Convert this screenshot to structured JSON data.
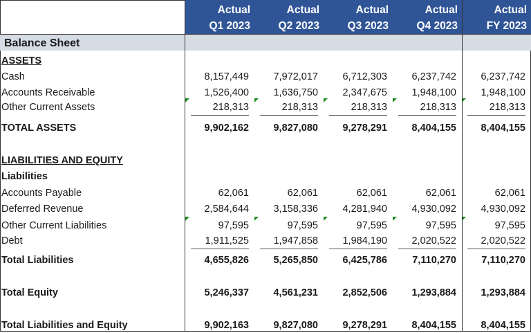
{
  "columns": [
    {
      "line1": "Actual",
      "line2": "Q1 2023"
    },
    {
      "line1": "Actual",
      "line2": "Q2 2023"
    },
    {
      "line1": "Actual",
      "line2": "Q3 2023"
    },
    {
      "line1": "Actual",
      "line2": "Q4 2023"
    },
    {
      "line1": "Actual",
      "line2": "FY 2023"
    }
  ],
  "section_title": "Balance Sheet",
  "rows": [
    {
      "label": "ASSETS",
      "style": "heading-underline",
      "values": []
    },
    {
      "label": "Cash",
      "values": [
        "8,157,449",
        "7,972,017",
        "6,712,303",
        "6,237,742",
        "6,237,742"
      ]
    },
    {
      "label": "Accounts Receivable",
      "values": [
        "1,526,400",
        "1,636,750",
        "2,347,675",
        "1,948,100",
        "1,948,100"
      ]
    },
    {
      "label": "Other Current Assets",
      "values": [
        "218,313",
        "218,313",
        "218,313",
        "218,313",
        "218,313"
      ],
      "underline": true,
      "flag": true
    },
    {
      "label": "TOTAL ASSETS",
      "style": "bold",
      "values": [
        "9,902,162",
        "9,827,080",
        "9,278,291",
        "8,404,155",
        "8,404,155"
      ]
    },
    {
      "label": "LIABILITIES AND EQUITY",
      "style": "heading-underline",
      "values": []
    },
    {
      "label": "Liabilities",
      "style": "bold",
      "values": []
    },
    {
      "label": "Accounts Payable",
      "values": [
        "62,061",
        "62,061",
        "62,061",
        "62,061",
        "62,061"
      ]
    },
    {
      "label": "Deferred Revenue",
      "values": [
        "2,584,644",
        "3,158,336",
        "4,281,940",
        "4,930,092",
        "4,930,092"
      ]
    },
    {
      "label": "Other Current Liabilities",
      "values": [
        "97,595",
        "97,595",
        "97,595",
        "97,595",
        "97,595"
      ],
      "flag": true
    },
    {
      "label": "Debt",
      "values": [
        "1,911,525",
        "1,947,858",
        "1,984,190",
        "2,020,522",
        "2,020,522"
      ],
      "underline": true
    },
    {
      "label": "Total Liabilities",
      "style": "bold",
      "values": [
        "4,655,826",
        "5,265,850",
        "6,425,786",
        "7,110,270",
        "7,110,270"
      ]
    },
    {
      "label": "Total Equity",
      "style": "bold",
      "values": [
        "5,246,337",
        "4,561,231",
        "2,852,506",
        "1,293,884",
        "1,293,884"
      ]
    },
    {
      "label": "Total Liabilities and Equity",
      "style": "bold",
      "values": [
        "9,902,163",
        "9,827,080",
        "9,278,291",
        "8,404,155",
        "8,404,155"
      ]
    }
  ],
  "colors": {
    "header_bg": "#2f5597",
    "band_bg": "#d6dce4",
    "flag": "#1e8a1e"
  }
}
